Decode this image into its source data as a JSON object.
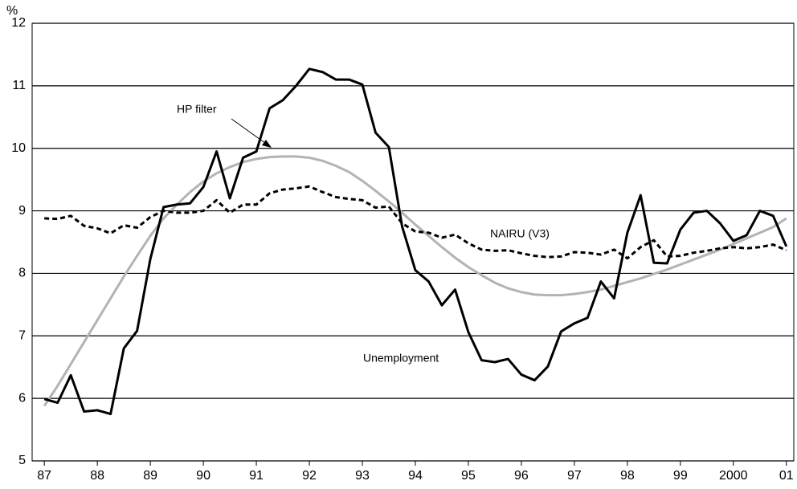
{
  "chart_data": {
    "type": "line",
    "y_label": "%",
    "x": [
      1987,
      1987.25,
      1987.5,
      1987.75,
      1988,
      1988.25,
      1988.5,
      1988.75,
      1989,
      1989.25,
      1989.5,
      1989.75,
      1990,
      1990.25,
      1990.5,
      1990.75,
      1991,
      1991.25,
      1991.5,
      1991.75,
      1992,
      1992.25,
      1992.5,
      1992.75,
      1993,
      1993.25,
      1993.5,
      1993.75,
      1994,
      1994.25,
      1994.5,
      1994.75,
      1995,
      1995.25,
      1995.5,
      1995.75,
      1996,
      1996.25,
      1996.5,
      1996.75,
      1997,
      1997.25,
      1997.5,
      1997.75,
      1998,
      1998.25,
      1998.5,
      1998.75,
      1999,
      1999.25,
      1999.5,
      1999.75,
      2000,
      2000.25,
      2000.5,
      2000.75,
      2001
    ],
    "series": [
      {
        "name": "Unemployment",
        "color": "#000000",
        "dash": false,
        "values": [
          5.99,
          5.93,
          6.37,
          5.79,
          5.81,
          5.75,
          6.8,
          7.08,
          8.23,
          9.06,
          9.1,
          9.12,
          9.38,
          9.95,
          9.2,
          9.85,
          9.95,
          10.64,
          10.77,
          11.0,
          11.27,
          11.22,
          11.1,
          11.1,
          11.02,
          10.25,
          10.02,
          8.75,
          8.05,
          7.87,
          7.49,
          7.74,
          7.06,
          6.61,
          6.58,
          6.63,
          6.38,
          6.29,
          6.51,
          7.07,
          7.2,
          7.29,
          7.87,
          7.6,
          8.65,
          9.25,
          8.17,
          8.16,
          8.7,
          8.97,
          9.0,
          8.8,
          8.52,
          8.61,
          9.0,
          8.92,
          8.43
        ]
      },
      {
        "name": "HP filter",
        "color": "#b3b3b3",
        "dash": false,
        "values": [
          5.88,
          6.2,
          6.55,
          6.9,
          7.25,
          7.6,
          7.95,
          8.28,
          8.6,
          8.88,
          9.1,
          9.3,
          9.47,
          9.6,
          9.7,
          9.78,
          9.83,
          9.86,
          9.87,
          9.87,
          9.85,
          9.8,
          9.72,
          9.62,
          9.48,
          9.32,
          9.15,
          8.97,
          8.78,
          8.6,
          8.42,
          8.25,
          8.1,
          7.97,
          7.85,
          7.76,
          7.7,
          7.66,
          7.65,
          7.65,
          7.67,
          7.7,
          7.74,
          7.8,
          7.86,
          7.92,
          7.99,
          8.06,
          8.14,
          8.22,
          8.3,
          8.38,
          8.47,
          8.56,
          8.65,
          8.74,
          8.88
        ]
      },
      {
        "name": "NAIRU (V3)",
        "color": "#000000",
        "dash": true,
        "values": [
          8.88,
          8.87,
          8.92,
          8.76,
          8.72,
          8.64,
          8.77,
          8.73,
          8.9,
          9.0,
          8.97,
          8.97,
          9.0,
          9.17,
          8.97,
          9.1,
          9.1,
          9.28,
          9.34,
          9.36,
          9.39,
          9.3,
          9.22,
          9.19,
          9.17,
          9.05,
          9.07,
          8.8,
          8.67,
          8.65,
          8.57,
          8.62,
          8.48,
          8.38,
          8.36,
          8.37,
          8.32,
          8.28,
          8.26,
          8.27,
          8.34,
          8.33,
          8.3,
          8.38,
          8.24,
          8.42,
          8.53,
          8.27,
          8.28,
          8.33,
          8.36,
          8.4,
          8.42,
          8.4,
          8.42,
          8.46,
          8.37
        ]
      }
    ],
    "xlim": [
      1986.77,
      2001.14
    ],
    "xticks": [
      {
        "value": 1987,
        "label": "87"
      },
      {
        "value": 1988,
        "label": "88"
      },
      {
        "value": 1989,
        "label": "89"
      },
      {
        "value": 1990,
        "label": "90"
      },
      {
        "value": 1991,
        "label": "91"
      },
      {
        "value": 1992,
        "label": "92"
      },
      {
        "value": 1993,
        "label": "93"
      },
      {
        "value": 1994,
        "label": "94"
      },
      {
        "value": 1995,
        "label": "95"
      },
      {
        "value": 1996,
        "label": "96"
      },
      {
        "value": 1997,
        "label": "97"
      },
      {
        "value": 1998,
        "label": "98"
      },
      {
        "value": 1999,
        "label": "99"
      },
      {
        "value": 2000,
        "label": "2000"
      },
      {
        "value": 2001,
        "label": "01"
      }
    ],
    "ylim": [
      5,
      12
    ],
    "yticks": [
      5,
      6,
      7,
      8,
      9,
      10,
      11,
      12
    ],
    "grid": true
  }
}
